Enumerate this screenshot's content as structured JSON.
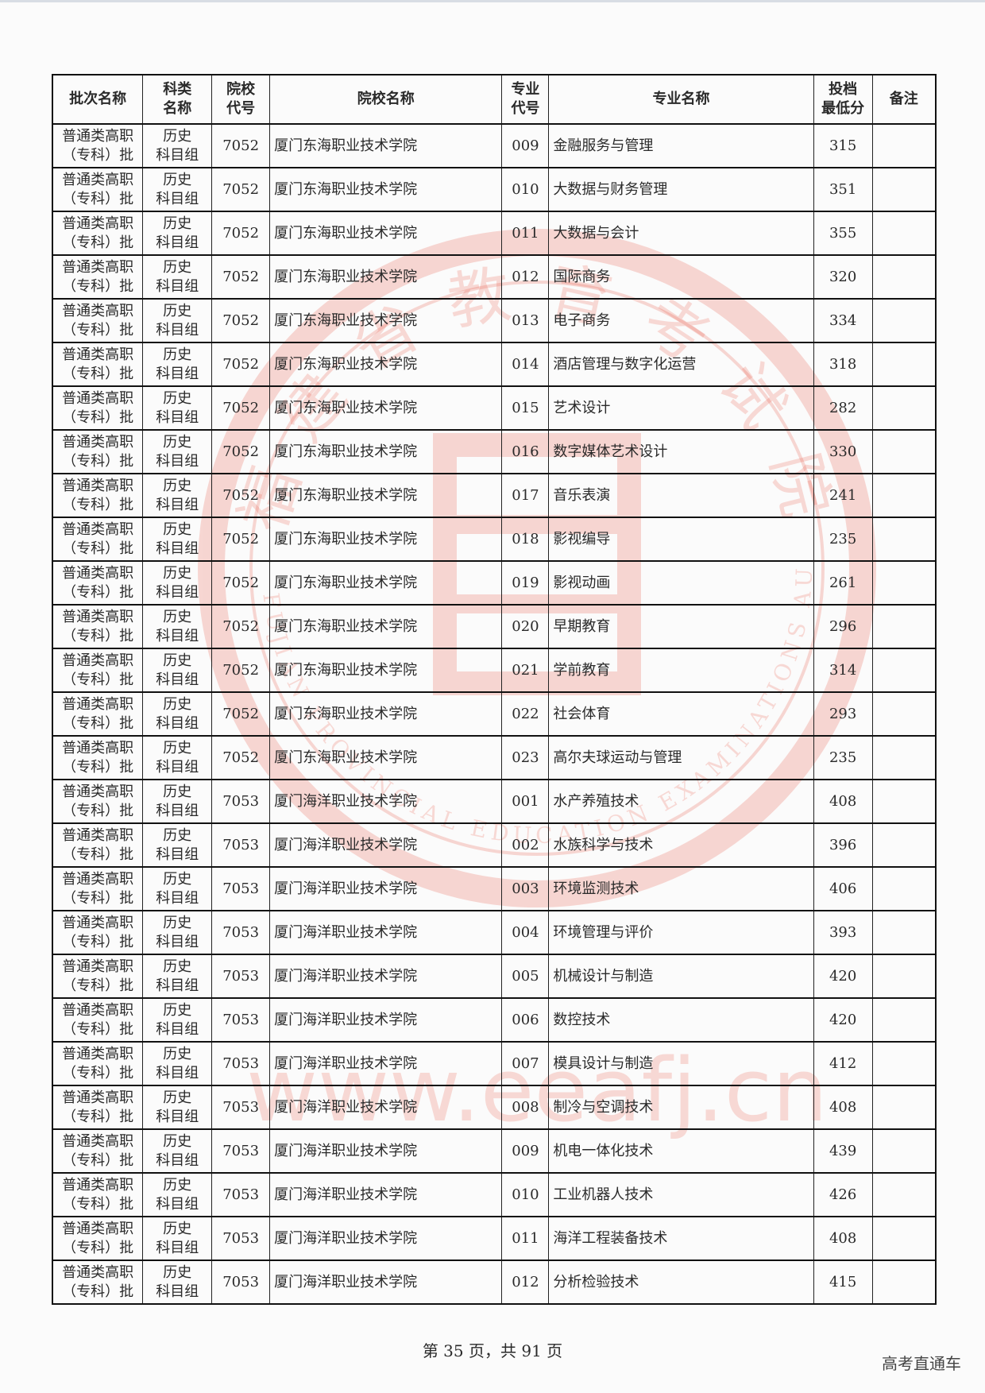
{
  "watermark": {
    "seal_cn": "福建省教育考试院",
    "seal_en": "FUJIAN PROVINCIAL EDUCATION EXAMINATIONS AUTHORITY",
    "url": "www.eeafj.cn",
    "color": "#e8523f"
  },
  "table": {
    "headers": [
      [
        "批次名称"
      ],
      [
        "科类",
        "名称"
      ],
      [
        "院校",
        "代号"
      ],
      [
        "院校名称"
      ],
      [
        "专业",
        "代号"
      ],
      [
        "专业名称"
      ],
      [
        "投档",
        "最低分"
      ],
      [
        "备注"
      ]
    ],
    "rows": [
      [
        "普通类高职",
        "（专科）批",
        "历史",
        "科目组",
        "7052",
        "厦门东海职业技术学院",
        "009",
        "金融服务与管理",
        "315",
        ""
      ],
      [
        "普通类高职",
        "（专科）批",
        "历史",
        "科目组",
        "7052",
        "厦门东海职业技术学院",
        "010",
        "大数据与财务管理",
        "351",
        ""
      ],
      [
        "普通类高职",
        "（专科）批",
        "历史",
        "科目组",
        "7052",
        "厦门东海职业技术学院",
        "011",
        "大数据与会计",
        "355",
        ""
      ],
      [
        "普通类高职",
        "（专科）批",
        "历史",
        "科目组",
        "7052",
        "厦门东海职业技术学院",
        "012",
        "国际商务",
        "320",
        ""
      ],
      [
        "普通类高职",
        "（专科）批",
        "历史",
        "科目组",
        "7052",
        "厦门东海职业技术学院",
        "013",
        "电子商务",
        "334",
        ""
      ],
      [
        "普通类高职",
        "（专科）批",
        "历史",
        "科目组",
        "7052",
        "厦门东海职业技术学院",
        "014",
        "酒店管理与数字化运营",
        "318",
        ""
      ],
      [
        "普通类高职",
        "（专科）批",
        "历史",
        "科目组",
        "7052",
        "厦门东海职业技术学院",
        "015",
        "艺术设计",
        "282",
        ""
      ],
      [
        "普通类高职",
        "（专科）批",
        "历史",
        "科目组",
        "7052",
        "厦门东海职业技术学院",
        "016",
        "数字媒体艺术设计",
        "330",
        ""
      ],
      [
        "普通类高职",
        "（专科）批",
        "历史",
        "科目组",
        "7052",
        "厦门东海职业技术学院",
        "017",
        "音乐表演",
        "241",
        ""
      ],
      [
        "普通类高职",
        "（专科）批",
        "历史",
        "科目组",
        "7052",
        "厦门东海职业技术学院",
        "018",
        "影视编导",
        "235",
        ""
      ],
      [
        "普通类高职",
        "（专科）批",
        "历史",
        "科目组",
        "7052",
        "厦门东海职业技术学院",
        "019",
        "影视动画",
        "261",
        ""
      ],
      [
        "普通类高职",
        "（专科）批",
        "历史",
        "科目组",
        "7052",
        "厦门东海职业技术学院",
        "020",
        "早期教育",
        "296",
        ""
      ],
      [
        "普通类高职",
        "（专科）批",
        "历史",
        "科目组",
        "7052",
        "厦门东海职业技术学院",
        "021",
        "学前教育",
        "314",
        ""
      ],
      [
        "普通类高职",
        "（专科）批",
        "历史",
        "科目组",
        "7052",
        "厦门东海职业技术学院",
        "022",
        "社会体育",
        "293",
        ""
      ],
      [
        "普通类高职",
        "（专科）批",
        "历史",
        "科目组",
        "7052",
        "厦门东海职业技术学院",
        "023",
        "高尔夫球运动与管理",
        "235",
        ""
      ],
      [
        "普通类高职",
        "（专科）批",
        "历史",
        "科目组",
        "7053",
        "厦门海洋职业技术学院",
        "001",
        "水产养殖技术",
        "408",
        ""
      ],
      [
        "普通类高职",
        "（专科）批",
        "历史",
        "科目组",
        "7053",
        "厦门海洋职业技术学院",
        "002",
        "水族科学与技术",
        "396",
        ""
      ],
      [
        "普通类高职",
        "（专科）批",
        "历史",
        "科目组",
        "7053",
        "厦门海洋职业技术学院",
        "003",
        "环境监测技术",
        "406",
        ""
      ],
      [
        "普通类高职",
        "（专科）批",
        "历史",
        "科目组",
        "7053",
        "厦门海洋职业技术学院",
        "004",
        "环境管理与评价",
        "393",
        ""
      ],
      [
        "普通类高职",
        "（专科）批",
        "历史",
        "科目组",
        "7053",
        "厦门海洋职业技术学院",
        "005",
        "机械设计与制造",
        "420",
        ""
      ],
      [
        "普通类高职",
        "（专科）批",
        "历史",
        "科目组",
        "7053",
        "厦门海洋职业技术学院",
        "006",
        "数控技术",
        "420",
        ""
      ],
      [
        "普通类高职",
        "（专科）批",
        "历史",
        "科目组",
        "7053",
        "厦门海洋职业技术学院",
        "007",
        "模具设计与制造",
        "412",
        ""
      ],
      [
        "普通类高职",
        "（专科）批",
        "历史",
        "科目组",
        "7053",
        "厦门海洋职业技术学院",
        "008",
        "制冷与空调技术",
        "408",
        ""
      ],
      [
        "普通类高职",
        "（专科）批",
        "历史",
        "科目组",
        "7053",
        "厦门海洋职业技术学院",
        "009",
        "机电一体化技术",
        "439",
        ""
      ],
      [
        "普通类高职",
        "（专科）批",
        "历史",
        "科目组",
        "7053",
        "厦门海洋职业技术学院",
        "010",
        "工业机器人技术",
        "426",
        ""
      ],
      [
        "普通类高职",
        "（专科）批",
        "历史",
        "科目组",
        "7053",
        "厦门海洋职业技术学院",
        "011",
        "海洋工程装备技术",
        "408",
        ""
      ],
      [
        "普通类高职",
        "（专科）批",
        "历史",
        "科目组",
        "7053",
        "厦门海洋职业技术学院",
        "012",
        "分析检验技术",
        "415",
        ""
      ]
    ]
  },
  "footer": {
    "page_text": "第 35 页，共 91 页",
    "brand": "高考直通车"
  }
}
